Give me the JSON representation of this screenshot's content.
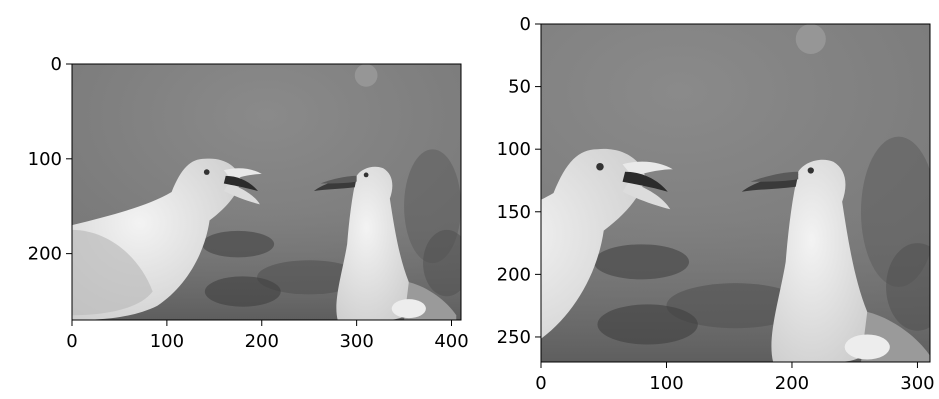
{
  "panels": [
    {
      "xticks": [
        {
          "value": 0,
          "label": "0"
        },
        {
          "value": 100,
          "label": "100"
        },
        {
          "value": 200,
          "label": "200"
        },
        {
          "value": 300,
          "label": "300"
        },
        {
          "value": 400,
          "label": "400"
        }
      ],
      "yticks": [
        {
          "value": 0,
          "label": "0"
        },
        {
          "value": 100,
          "label": "100"
        },
        {
          "value": 200,
          "label": "200"
        }
      ],
      "xlim": [
        0,
        410
      ],
      "ylim": [
        0,
        270
      ]
    },
    {
      "xticks": [
        {
          "value": 0,
          "label": "0"
        },
        {
          "value": 100,
          "label": "100"
        },
        {
          "value": 200,
          "label": "200"
        },
        {
          "value": 300,
          "label": "300"
        }
      ],
      "yticks": [
        {
          "value": 0,
          "label": "0"
        },
        {
          "value": 50,
          "label": "50"
        },
        {
          "value": 100,
          "label": "100"
        },
        {
          "value": 150,
          "label": "150"
        },
        {
          "value": 200,
          "label": "200"
        },
        {
          "value": 250,
          "label": "250"
        }
      ],
      "xlim": [
        0,
        310
      ],
      "ylim": [
        0,
        270
      ]
    }
  ]
}
